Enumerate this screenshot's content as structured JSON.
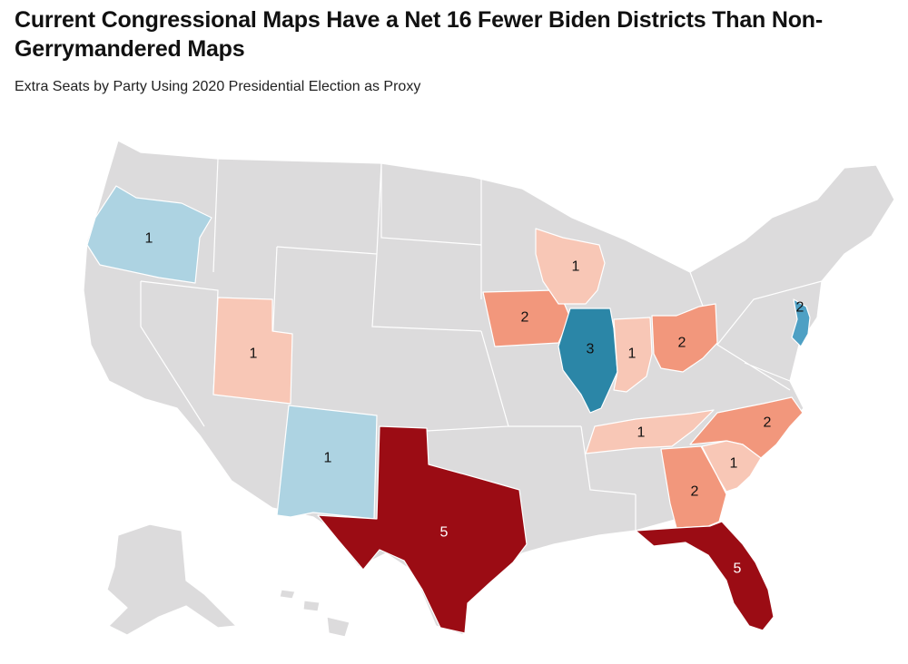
{
  "title": "Current Congressional Maps Have a Net 16 Fewer Biden Districts Than Non-Gerrymandered Maps",
  "subtitle": "Extra Seats by Party Using 2020 Presidential Election as Proxy",
  "colors": {
    "neutral": "#dcdbdc",
    "dem_1": "#add3e2",
    "dem_2": "#4ea0c4",
    "dem_3": "#2b86a7",
    "rep_1": "#f8c7b6",
    "rep_2": "#f2977c",
    "rep_5": "#9b0c14"
  },
  "states": [
    {
      "id": "OR",
      "party": "dem",
      "seats": "1"
    },
    {
      "id": "NM",
      "party": "dem",
      "seats": "1"
    },
    {
      "id": "IL",
      "party": "dem",
      "seats": "3"
    },
    {
      "id": "NJ",
      "party": "dem",
      "seats": "2"
    },
    {
      "id": "UT",
      "party": "rep",
      "seats": "1"
    },
    {
      "id": "WI",
      "party": "rep",
      "seats": "1"
    },
    {
      "id": "IA",
      "party": "rep",
      "seats": "2"
    },
    {
      "id": "IN",
      "party": "rep",
      "seats": "1"
    },
    {
      "id": "OH",
      "party": "rep",
      "seats": "2"
    },
    {
      "id": "TN",
      "party": "rep",
      "seats": "1"
    },
    {
      "id": "NC",
      "party": "rep",
      "seats": "2"
    },
    {
      "id": "SC",
      "party": "rep",
      "seats": "1"
    },
    {
      "id": "GA",
      "party": "rep",
      "seats": "2"
    },
    {
      "id": "TX",
      "party": "rep",
      "seats": "5"
    },
    {
      "id": "FL",
      "party": "rep",
      "seats": "5"
    }
  ]
}
